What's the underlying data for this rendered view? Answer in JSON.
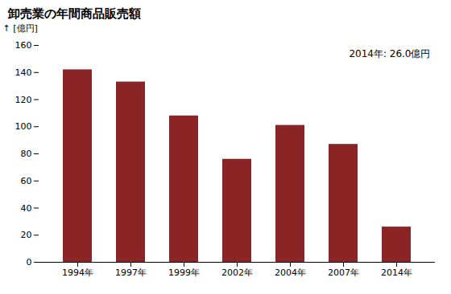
{
  "chart_data": {
    "type": "bar",
    "title": "卸売業の年間商品販売額",
    "ylabel": "[億円]",
    "annotation": "2014年: 26.0億円",
    "categories": [
      "1994年",
      "1997年",
      "1999年",
      "2002年",
      "2004年",
      "2007年",
      "2014年"
    ],
    "values": [
      142,
      133,
      108,
      76,
      101,
      87,
      26
    ],
    "color": "#8B2525",
    "ylim": [
      0,
      160
    ],
    "yticks": [
      0,
      20,
      40,
      60,
      80,
      100,
      120,
      140,
      160
    ],
    "grid": false
  }
}
